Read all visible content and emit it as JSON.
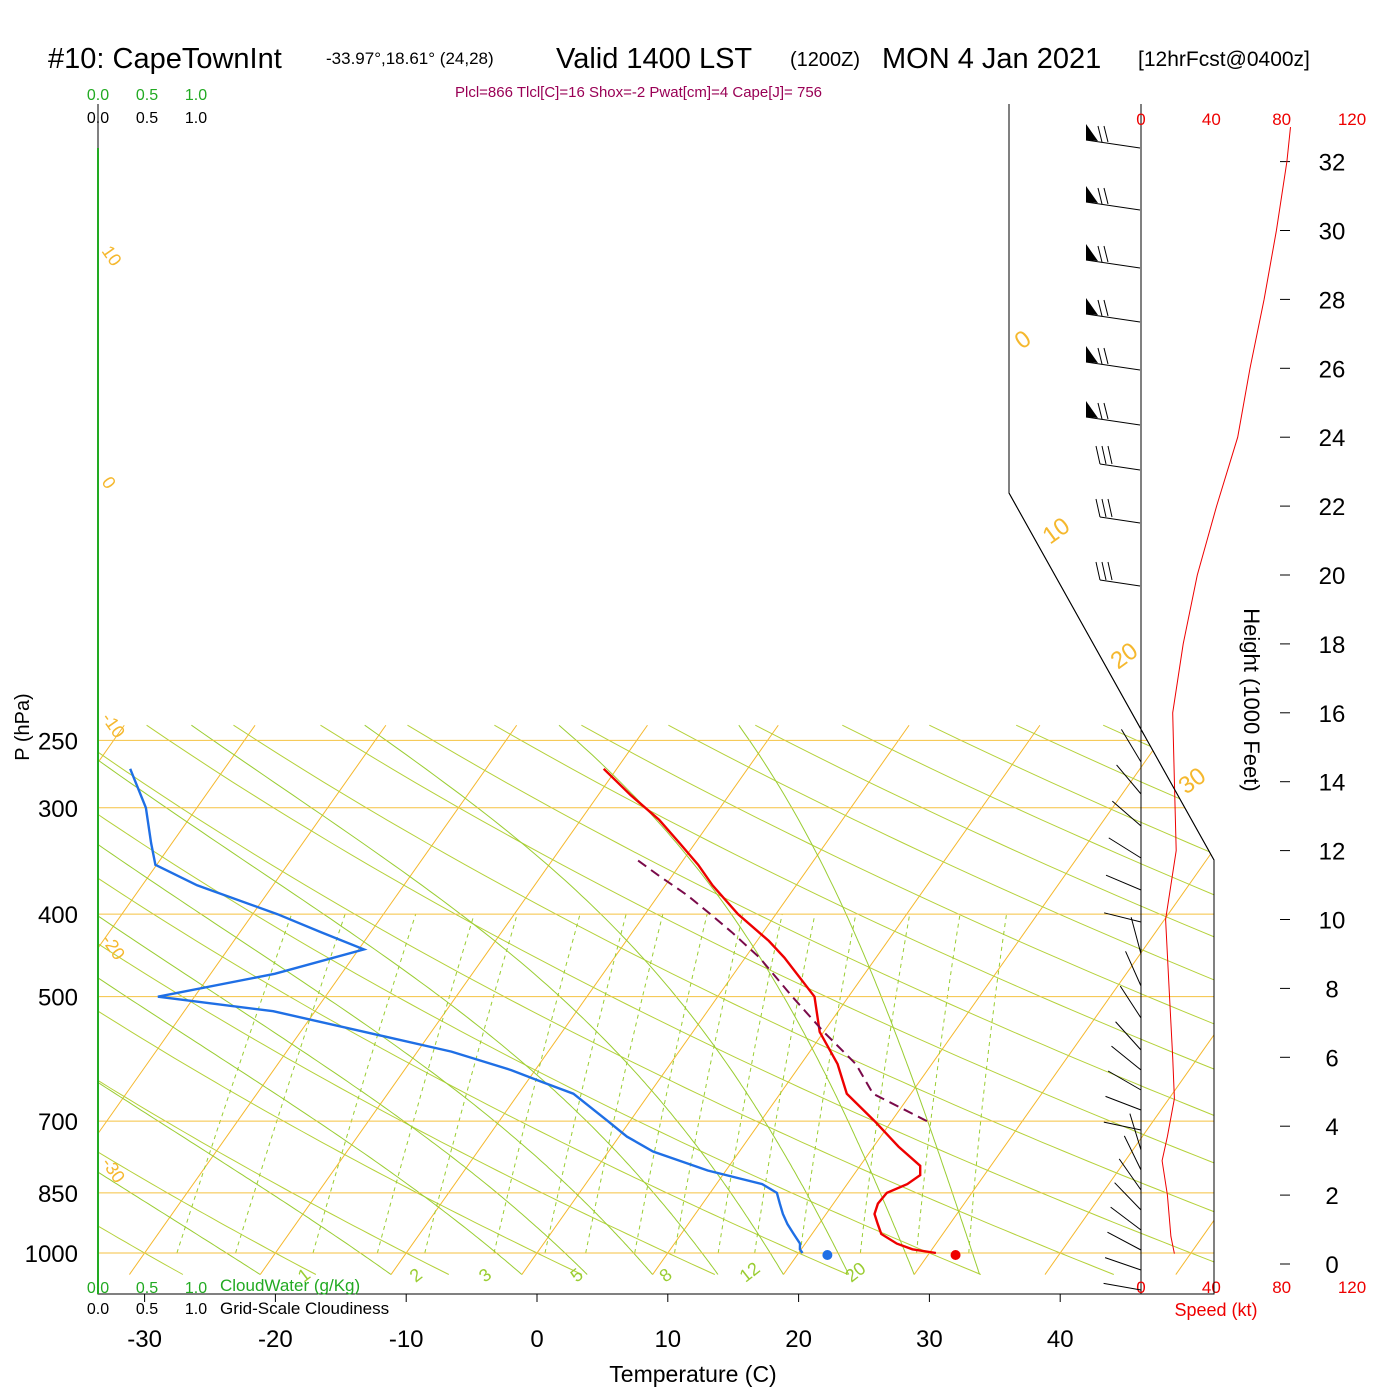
{
  "header": {
    "station": "#10: CapeTownInt",
    "coords": "-33.97°,18.61° (24,28)",
    "valid": "Valid 1400 LST",
    "utc": "(1200Z)",
    "date": "MON 4 Jan 2021",
    "forecast": "[12hrFcst@0400z]",
    "indices": "Plcl=866 Tlcl[C]=16 Shox=-2 Pwat[cm]=4 Cape[J]= 756"
  },
  "colors": {
    "isobar": "#f5c242",
    "isotherm": "#f5b82e",
    "dry_adiabat": "#b5d13a",
    "moist_adiabat": "#9acd32",
    "mixing_ratio": "#9acd32",
    "temperature": "#ee0000",
    "dewpoint": "#1f6fe5",
    "parcel": "#7a0a4a",
    "cloudwater": "#22aa22",
    "wind_speed": "#ee0000",
    "indices": "#990055"
  },
  "chart_data": {
    "type": "line",
    "title": "#10: CapeTownInt  Valid 1400 LST (1200Z) MON 4 Jan 2021 [12hrFcst@0400z]",
    "xlabel": "Temperature (C)",
    "ylabel": "P (hPa)",
    "y_scale": "log",
    "xlim": [
      -34,
      46
    ],
    "ylim": [
      1030,
      250
    ],
    "x_ticks": [
      "-30",
      "-20",
      "-10",
      "0",
      "10",
      "20",
      "30",
      "40"
    ],
    "y_ticks": [
      "250",
      "300",
      "400",
      "500",
      "700",
      "850",
      "1000"
    ],
    "isobars": [
      250,
      300,
      400,
      500,
      700,
      850,
      1000
    ],
    "skew_labels": [
      "10",
      "0",
      "-10",
      "-20",
      "-30"
    ],
    "skew_labels_right": [
      "0",
      "10",
      "20",
      "30"
    ],
    "mixing_ratio_labels": [
      "1",
      "2",
      "3",
      "5",
      "8",
      "12",
      "20"
    ],
    "cloud_top_labels": [
      "0.0",
      "0.5",
      "1.0"
    ],
    "cloud_top_labels_black": [
      "0.0",
      "0.5",
      "1.0"
    ],
    "cloud_bottom_labels": [
      "0.0",
      "0.5",
      "1.0"
    ],
    "cloud_bottom_labels_black": [
      "0.0",
      "0.5",
      "1.0"
    ],
    "cloudwater_label": "CloudWater (g/Kg)",
    "cloudiness_label": "Grid-Scale Cloudiness",
    "series": [
      {
        "name": "Temperature",
        "color": "#ee0000",
        "p": [
          1000,
          990,
          975,
          950,
          925,
          900,
          875,
          850,
          830,
          810,
          790,
          750,
          700,
          650,
          600,
          550,
          500,
          450,
          430,
          400,
          370,
          350,
          330,
          310,
          290,
          270
        ],
        "t": [
          30.5,
          28.5,
          27.0,
          25.3,
          24.5,
          23.7,
          23.4,
          23.5,
          24.6,
          25.1,
          24.6,
          21.9,
          18.7,
          15.1,
          12.8,
          9.7,
          7.4,
          3.0,
          0.9,
          -2.9,
          -6.4,
          -8.6,
          -11.2,
          -14.0,
          -17.5,
          -21.0
        ]
      },
      {
        "name": "Dewpoint",
        "color": "#1f6fe5",
        "p": [
          1000,
          990,
          975,
          950,
          925,
          900,
          875,
          850,
          830,
          800,
          760,
          730,
          700,
          650,
          630,
          610,
          580,
          520,
          500,
          470,
          440,
          420,
          400,
          370,
          350,
          330,
          300,
          270
        ],
        "t": [
          20.3,
          19.9,
          19.6,
          18.6,
          17.6,
          16.7,
          15.9,
          15.1,
          13.5,
          8.6,
          3.4,
          0.6,
          -1.7,
          -5.8,
          -8.8,
          -11.8,
          -17.4,
          -33.2,
          -42.8,
          -35.1,
          -29.6,
          -33.8,
          -38.1,
          -45.8,
          -50.1,
          -51.6,
          -53.9,
          -57.2
        ]
      },
      {
        "name": "Parcel",
        "color": "#7a0a4a",
        "p": [
          700,
          650,
          600,
          550,
          500,
          450,
          420,
          400,
          380,
          360,
          345
        ],
        "t": [
          22.7,
          17.1,
          14.2,
          10.0,
          5.7,
          1.1,
          -2.4,
          -5.0,
          -7.8,
          -11.1,
          -13.6
        ]
      }
    ],
    "surface_points": [
      {
        "name": "Surface temperature",
        "p": 1000,
        "t": 32.0
      },
      {
        "name": "Surface dewpoint",
        "p": 1000,
        "t": 22.2
      }
    ],
    "wind_panel": {
      "type": "line",
      "xlabel": "Speed (kt)",
      "ylabel": "Height (1000 Feet)",
      "x_ticks": [
        "0",
        "40",
        "80",
        "120"
      ],
      "x_ticks_top": [
        "0",
        "40",
        "80",
        "120"
      ],
      "xlim": [
        0,
        120
      ],
      "y_ticks": [
        "0",
        "2",
        "4",
        "6",
        "8",
        "10",
        "12",
        "14",
        "16",
        "18",
        "20",
        "22",
        "24",
        "26",
        "28",
        "30",
        "32"
      ],
      "ylim": [
        -1,
        33
      ],
      "height_kft": [
        0.3,
        0.8,
        2,
        3,
        3.7,
        4.8,
        6,
        7,
        8,
        10,
        12,
        14,
        16,
        18,
        20,
        22,
        24,
        26,
        28,
        30,
        32,
        33
      ],
      "speed_kt": [
        19,
        17,
        15,
        12,
        15,
        19,
        18,
        17,
        16,
        14,
        20,
        19,
        18,
        24,
        32,
        43,
        55,
        62,
        70,
        77,
        83,
        85
      ]
    }
  }
}
